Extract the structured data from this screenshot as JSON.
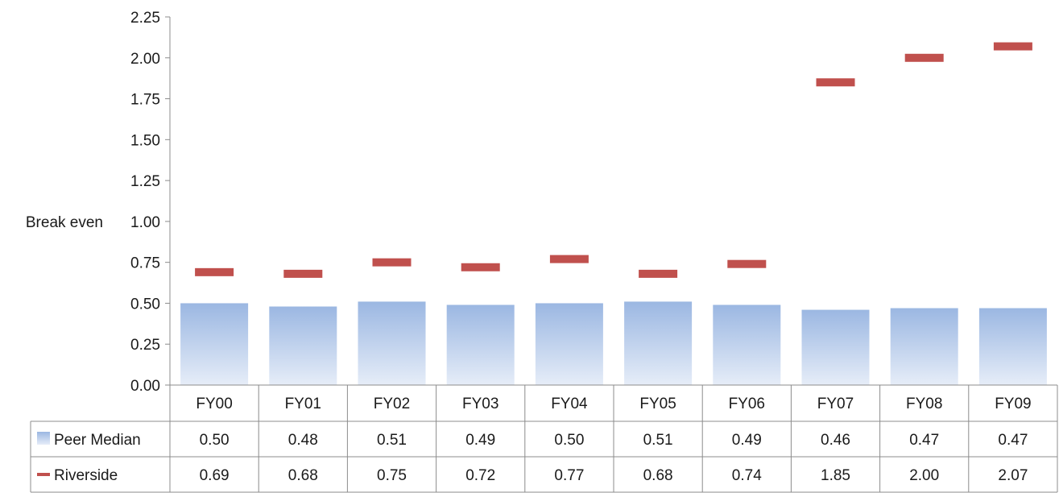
{
  "chart_data": {
    "type": "bar",
    "categories": [
      "FY00",
      "FY01",
      "FY02",
      "FY03",
      "FY04",
      "FY05",
      "FY06",
      "FY07",
      "FY08",
      "FY09"
    ],
    "series": [
      {
        "name": "Peer Median",
        "kind": "bar",
        "color": "#9bb7e2",
        "values": [
          0.5,
          0.48,
          0.51,
          0.49,
          0.5,
          0.51,
          0.49,
          0.46,
          0.47,
          0.47
        ],
        "labels": [
          "0.50",
          "0.48",
          "0.51",
          "0.49",
          "0.50",
          "0.51",
          "0.49",
          "0.46",
          "0.47",
          "0.47"
        ]
      },
      {
        "name": "Riverside",
        "kind": "marker",
        "color": "#c0504d",
        "values": [
          0.69,
          0.68,
          0.75,
          0.72,
          0.77,
          0.68,
          0.74,
          1.85,
          2.0,
          2.07
        ],
        "labels": [
          "0.69",
          "0.68",
          "0.75",
          "0.72",
          "0.77",
          "0.68",
          "0.74",
          "1.85",
          "2.00",
          "2.07"
        ]
      }
    ],
    "ylim": [
      0,
      2.25
    ],
    "yticks": [
      0,
      0.25,
      0.5,
      0.75,
      1.0,
      1.25,
      1.5,
      1.75,
      2.0,
      2.25
    ],
    "ytick_labels": [
      "0.00",
      "0.25",
      "0.50",
      "0.75",
      "1.00",
      "1.25",
      "1.50",
      "1.75",
      "2.00",
      "2.25"
    ],
    "annotation": {
      "text": "Break even",
      "y": 1.0
    },
    "data_table": true,
    "legend": "data-table-left"
  }
}
